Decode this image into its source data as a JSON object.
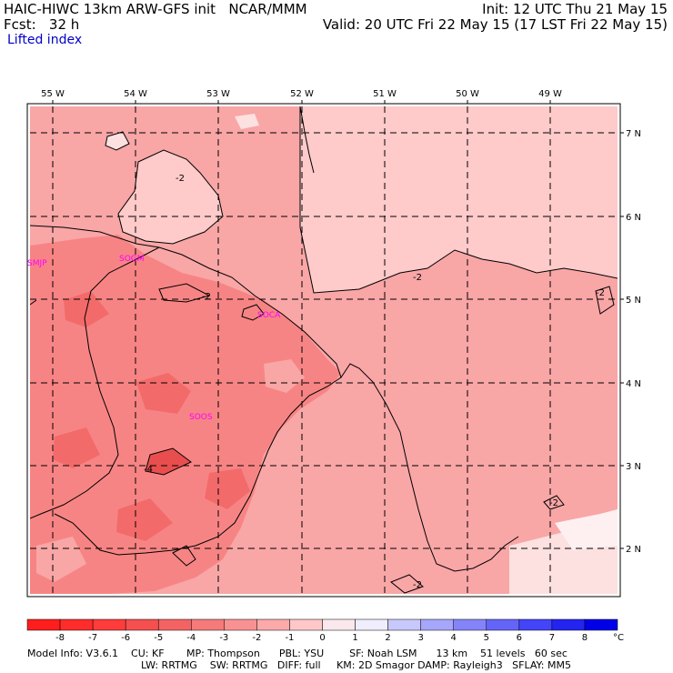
{
  "header": {
    "title": "HAIC-HIWC 13km ARW-GFS init   NCAR/MMM",
    "forecast": "Fcst:   32 h",
    "field": "Lifted index",
    "init": "Init: 12 UTC Thu 21 May 15",
    "valid": "Valid: 20 UTC Fri 22 May 15 (17 LST Fri 22 May 15)"
  },
  "map": {
    "lon_labels": [
      "55 W",
      "54 W",
      "53 W",
      "52 W",
      "51 W",
      "50 W",
      "49 W"
    ],
    "lat_labels": [
      "7 N",
      "6 N",
      "5 N",
      "4 N",
      "3 N",
      "2 N"
    ],
    "stations": [
      "SMJP",
      "SOGM",
      "SOCA",
      "SOOS"
    ],
    "contour_labels": [
      "-2",
      "-2",
      "-2",
      "-2",
      "-2",
      "-2",
      "-4"
    ]
  },
  "colorbar": {
    "ticks": [
      "-8",
      "-7",
      "-6",
      "-5",
      "-4",
      "-3",
      "-2",
      "-1",
      "0",
      "1",
      "2",
      "3",
      "4",
      "5",
      "6",
      "7",
      "8"
    ],
    "unit": "°C",
    "colors": [
      "#ff1e1e",
      "#ff2c2c",
      "#ff3c3c",
      "#f54f4f",
      "#f36363",
      "#f57a7a",
      "#f89292",
      "#fba9a9",
      "#fec8c8",
      "#fbe8ec",
      "#f0eefc",
      "#c8c8fc",
      "#a6a6fa",
      "#8484f8",
      "#6464f8",
      "#4444f8",
      "#2424f0",
      "#0000e8"
    ]
  },
  "footer": {
    "line1": "Model Info: V3.6.1    CU: KF       MP: Thompson      PBL: YSU        SF: Noah LSM      13 km    51 levels   60 sec",
    "line2": "LW: RRTMG    SW: RRTMG   DIFF: full     KM: 2D Smagor DAMP: Rayleigh3   SFLAY: MM5"
  }
}
